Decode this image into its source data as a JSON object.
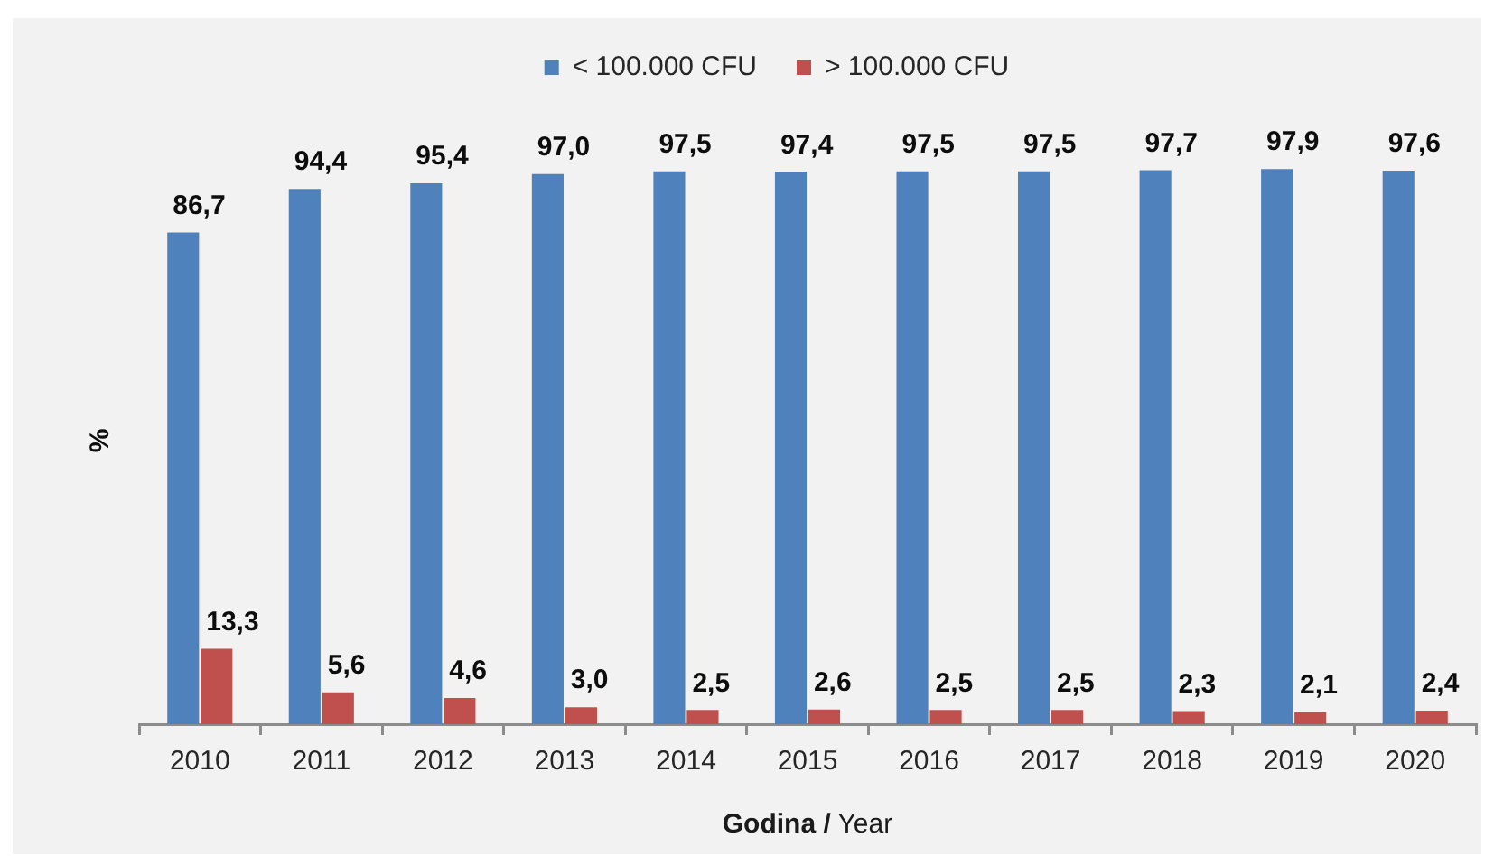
{
  "chart_data": {
    "type": "bar",
    "xlabel": "Godina / Year",
    "ylabel": "%",
    "legend": "top",
    "tick_labels": "x",
    "categories": [
      "2010",
      "2011",
      "2012",
      "2013",
      "2014",
      "2015",
      "2016",
      "2017",
      "2018",
      "2019",
      "2020"
    ],
    "series": [
      {
        "name": "< 100.000 CFU",
        "color": "#4f81bd",
        "values": [
          86.7,
          94.4,
          95.4,
          97.0,
          97.5,
          97.4,
          97.5,
          97.5,
          97.7,
          97.9,
          97.6
        ],
        "value_labels": [
          "86,7",
          "94,4",
          "95,4",
          "97,0",
          "97,5",
          "97,4",
          "97,5",
          "97,5",
          "97,7",
          "97,9",
          "97,6"
        ]
      },
      {
        "name": "> 100.000 CFU",
        "color": "#c0504d",
        "values": [
          13.3,
          5.6,
          4.6,
          3.0,
          2.5,
          2.6,
          2.5,
          2.5,
          2.3,
          2.1,
          2.4
        ],
        "value_labels": [
          "13,3",
          "5,6",
          "4,6",
          "3,0",
          "2,5",
          "2,6",
          "2,5",
          "2,5",
          "2,3",
          "2,1",
          "2,4"
        ]
      }
    ]
  }
}
